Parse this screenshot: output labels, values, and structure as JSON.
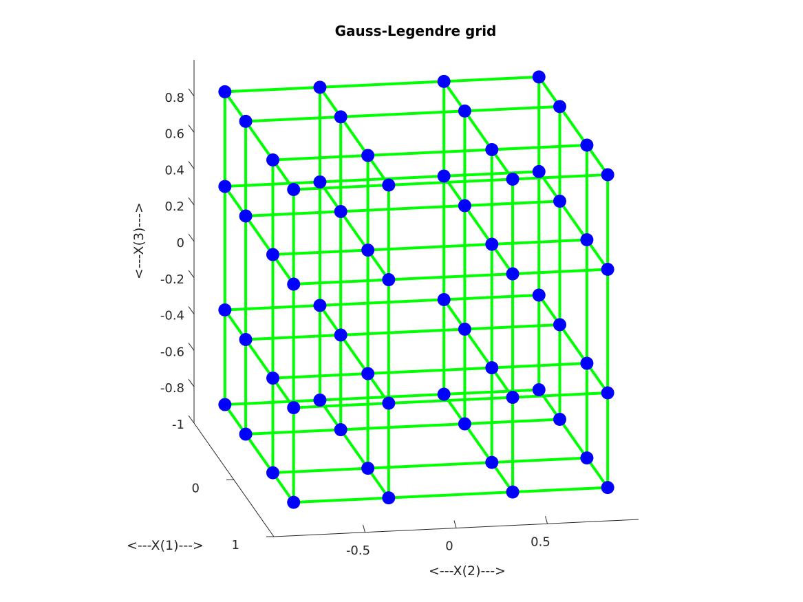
{
  "chart_data": {
    "type": "scatter3d",
    "title": "Gauss-Legendre grid",
    "xlabel": "<---X(1)--->",
    "ylabel": "<---X(2)--->",
    "zlabel": "<---X(3)--->",
    "xlim": [
      -1,
      1
    ],
    "ylim": [
      -1,
      1
    ],
    "zlim": [
      -1,
      1
    ],
    "x_ticks": [
      "0",
      "1"
    ],
    "y_ticks": [
      "-0.5",
      "0",
      "0.5"
    ],
    "z_ticks": [
      "0.8",
      "0.6",
      "0.4",
      "0.2",
      "0",
      "-0.2",
      "-0.4",
      "-0.6",
      "-0.8",
      "-1"
    ],
    "grid_nodes": [
      -0.861136,
      -0.339981,
      0.339981,
      0.861136
    ],
    "node_count_per_axis": 4,
    "grid": false,
    "colors": {
      "nodes": "#0000ff",
      "lines": "#00ff00",
      "axes": "#262626"
    }
  }
}
